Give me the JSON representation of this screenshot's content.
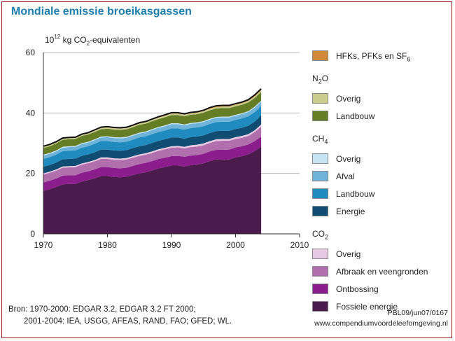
{
  "title": "Mondiale emissie broeikasgassen",
  "unit_label": {
    "base": "10",
    "exp": "12",
    "pre": " kg CO",
    "sub": "2",
    "post": "-equivalenten"
  },
  "legend_groups": [
    {
      "title": "",
      "title_sub": "",
      "items": [
        {
          "label": "HFKs, PFKs en SF",
          "label_sub": "6",
          "color": "#cf8a3a"
        }
      ]
    },
    {
      "title": "N",
      "title_sub": "2",
      "title_post": "O",
      "items": [
        {
          "label": "Overig",
          "label_sub": "",
          "color": "#c9cc8c"
        },
        {
          "label": "Landbouw",
          "label_sub": "",
          "color": "#657d25"
        }
      ]
    },
    {
      "title": "CH",
      "title_sub": "4",
      "title_post": "",
      "items": [
        {
          "label": "Overig",
          "label_sub": "",
          "color": "#c7e4f4"
        },
        {
          "label": "Afval",
          "label_sub": "",
          "color": "#6fb3d9"
        },
        {
          "label": "Landbouw",
          "label_sub": "",
          "color": "#1f8bbf"
        },
        {
          "label": "Energie",
          "label_sub": "",
          "color": "#114d73"
        }
      ]
    },
    {
      "title": "CO",
      "title_sub": "2",
      "title_post": "",
      "items": [
        {
          "label": "Overig",
          "label_sub": "",
          "color": "#e8c9e3"
        },
        {
          "label": "Afbraak en veengronden",
          "label_sub": "",
          "color": "#b170ad"
        },
        {
          "label": "Ontbossing",
          "label_sub": "",
          "color": "#8c1d8c"
        },
        {
          "label": "Fossiele energie",
          "label_sub": "",
          "color": "#4c1b4e"
        }
      ]
    }
  ],
  "source": {
    "line1": "Bron: 1970-2000: EDGAR 3.2, EDGAR 3.2 FT 2000;",
    "line2": "2001-2004: IEA, USGG, AFEAS, RAND, FAO; GFED; WL."
  },
  "credits": {
    "line1": "PBL09/jun07/0167",
    "line2": "www.compendiumvoordeleefomgeving.nl"
  },
  "chart_data": {
    "type": "area",
    "stacked": true,
    "x": [
      1970,
      1971,
      1972,
      1973,
      1974,
      1975,
      1976,
      1977,
      1978,
      1979,
      1980,
      1981,
      1982,
      1983,
      1984,
      1985,
      1986,
      1987,
      1988,
      1989,
      1990,
      1991,
      1992,
      1993,
      1994,
      1995,
      1996,
      1997,
      1998,
      1999,
      2000,
      2001,
      2002,
      2003,
      2004
    ],
    "xlim": [
      1970,
      2010
    ],
    "ylim": [
      0,
      60
    ],
    "xticks": [
      1970,
      1980,
      1990,
      2000,
      2010
    ],
    "yticks": [
      0,
      20,
      40,
      60
    ],
    "grid": true,
    "series": [
      {
        "name": "Fossiele energie",
        "color": "#4c1b4e",
        "values": [
          14.2,
          14.8,
          15.5,
          16.4,
          16.5,
          16.5,
          17.3,
          17.8,
          18.4,
          19.1,
          19.1,
          18.8,
          18.7,
          18.9,
          19.5,
          20.0,
          20.4,
          21.0,
          21.7,
          22.1,
          22.6,
          22.6,
          22.3,
          22.7,
          22.9,
          23.3,
          24.1,
          24.6,
          24.5,
          24.6,
          25.3,
          25.7,
          26.3,
          27.4,
          28.9
        ]
      },
      {
        "name": "Ontbossing",
        "color": "#8c1d8c",
        "values": [
          2.8,
          2.8,
          2.8,
          2.9,
          2.9,
          2.9,
          2.9,
          2.9,
          2.9,
          3.0,
          3.0,
          3.0,
          3.0,
          3.0,
          3.0,
          3.1,
          3.1,
          3.1,
          3.1,
          3.1,
          3.1,
          3.2,
          3.2,
          3.2,
          3.2,
          3.2,
          3.2,
          3.2,
          3.3,
          3.3,
          3.3,
          3.3,
          3.3,
          3.3,
          3.3
        ]
      },
      {
        "name": "Afbraak en veengronden",
        "color": "#b170ad",
        "values": [
          2.6,
          2.6,
          2.6,
          2.6,
          2.6,
          2.7,
          2.7,
          2.7,
          2.7,
          2.7,
          2.7,
          2.7,
          2.7,
          2.7,
          2.7,
          2.7,
          2.7,
          2.7,
          2.7,
          2.8,
          2.8,
          2.8,
          2.8,
          2.8,
          2.8,
          2.8,
          2.8,
          2.9,
          3.0,
          2.9,
          2.8,
          2.8,
          2.8,
          3.0,
          3.3
        ]
      },
      {
        "name": "Overig CO2",
        "color": "#e8c9e3",
        "values": [
          0.4,
          0.4,
          0.4,
          0.4,
          0.4,
          0.4,
          0.4,
          0.4,
          0.4,
          0.5,
          0.5,
          0.5,
          0.5,
          0.5,
          0.5,
          0.5,
          0.5,
          0.5,
          0.5,
          0.5,
          0.5,
          0.5,
          0.5,
          0.6,
          0.6,
          0.6,
          0.6,
          0.6,
          0.6,
          0.6,
          0.6,
          0.6,
          0.6,
          0.6,
          0.7
        ]
      },
      {
        "name": "Energie",
        "color": "#114d73",
        "values": [
          2.2,
          2.2,
          2.3,
          2.4,
          2.4,
          2.4,
          2.5,
          2.5,
          2.6,
          2.6,
          2.6,
          2.6,
          2.6,
          2.6,
          2.7,
          2.7,
          2.7,
          2.8,
          2.8,
          2.8,
          2.9,
          2.8,
          2.7,
          2.7,
          2.7,
          2.7,
          2.7,
          2.7,
          2.7,
          2.7,
          2.7,
          2.7,
          2.8,
          2.9,
          3.0
        ]
      },
      {
        "name": "Landbouw CH4",
        "color": "#1f8bbf",
        "values": [
          2.6,
          2.6,
          2.6,
          2.7,
          2.7,
          2.7,
          2.7,
          2.7,
          2.8,
          2.8,
          2.8,
          2.8,
          2.8,
          2.8,
          2.8,
          2.9,
          2.9,
          2.9,
          2.9,
          2.9,
          3.0,
          3.0,
          3.0,
          3.0,
          3.0,
          3.0,
          3.0,
          3.0,
          3.0,
          3.0,
          3.0,
          3.1,
          3.1,
          3.1,
          3.1
        ]
      },
      {
        "name": "Afval",
        "color": "#6fb3d9",
        "values": [
          1.1,
          1.1,
          1.1,
          1.1,
          1.2,
          1.2,
          1.2,
          1.2,
          1.2,
          1.2,
          1.3,
          1.3,
          1.3,
          1.3,
          1.3,
          1.3,
          1.3,
          1.4,
          1.4,
          1.4,
          1.4,
          1.4,
          1.4,
          1.4,
          1.4,
          1.4,
          1.4,
          1.4,
          1.4,
          1.4,
          1.4,
          1.4,
          1.4,
          1.5,
          1.5
        ]
      },
      {
        "name": "Overig CH4",
        "color": "#c7e4f4",
        "values": [
          0.3,
          0.3,
          0.3,
          0.3,
          0.3,
          0.3,
          0.3,
          0.3,
          0.3,
          0.3,
          0.3,
          0.3,
          0.3,
          0.3,
          0.3,
          0.3,
          0.3,
          0.3,
          0.3,
          0.3,
          0.3,
          0.3,
          0.3,
          0.3,
          0.3,
          0.3,
          0.3,
          0.3,
          0.3,
          0.3,
          0.3,
          0.3,
          0.3,
          0.3,
          0.3
        ]
      },
      {
        "name": "Landbouw N2O",
        "color": "#657d25",
        "values": [
          2.2,
          2.2,
          2.3,
          2.3,
          2.3,
          2.3,
          2.4,
          2.4,
          2.4,
          2.4,
          2.5,
          2.5,
          2.5,
          2.5,
          2.5,
          2.6,
          2.6,
          2.6,
          2.6,
          2.7,
          2.7,
          2.7,
          2.7,
          2.7,
          2.7,
          2.8,
          2.8,
          2.8,
          2.8,
          2.8,
          2.8,
          2.8,
          2.9,
          2.9,
          2.9
        ]
      },
      {
        "name": "Overig N2O",
        "color": "#c9cc8c",
        "values": [
          0.5,
          0.5,
          0.5,
          0.5,
          0.5,
          0.5,
          0.5,
          0.5,
          0.5,
          0.5,
          0.5,
          0.5,
          0.5,
          0.5,
          0.5,
          0.5,
          0.5,
          0.5,
          0.5,
          0.5,
          0.5,
          0.5,
          0.5,
          0.5,
          0.5,
          0.5,
          0.5,
          0.5,
          0.5,
          0.5,
          0.5,
          0.5,
          0.5,
          0.5,
          0.5
        ]
      },
      {
        "name": "HFKs, PFKs en SF6",
        "color": "#cf8a3a",
        "values": [
          0.1,
          0.1,
          0.1,
          0.1,
          0.1,
          0.1,
          0.1,
          0.1,
          0.2,
          0.2,
          0.2,
          0.2,
          0.2,
          0.2,
          0.2,
          0.2,
          0.2,
          0.2,
          0.3,
          0.3,
          0.3,
          0.3,
          0.3,
          0.3,
          0.3,
          0.3,
          0.4,
          0.4,
          0.4,
          0.4,
          0.4,
          0.4,
          0.4,
          0.5,
          0.5
        ]
      }
    ]
  }
}
